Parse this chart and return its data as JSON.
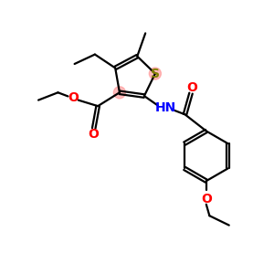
{
  "background_color": "#ffffff",
  "fig_size": [
    3.0,
    3.0
  ],
  "dpi": 100,
  "bond_color": "#000000",
  "sulfur_color": "#808000",
  "oxygen_color": "#ff0000",
  "nitrogen_color": "#0000ff",
  "highlight_color": "#ff8888",
  "highlight_alpha": 0.55,
  "lw": 1.6,
  "fontsize": 9.5,
  "xlim": [
    0,
    10
  ],
  "ylim": [
    0,
    10
  ]
}
